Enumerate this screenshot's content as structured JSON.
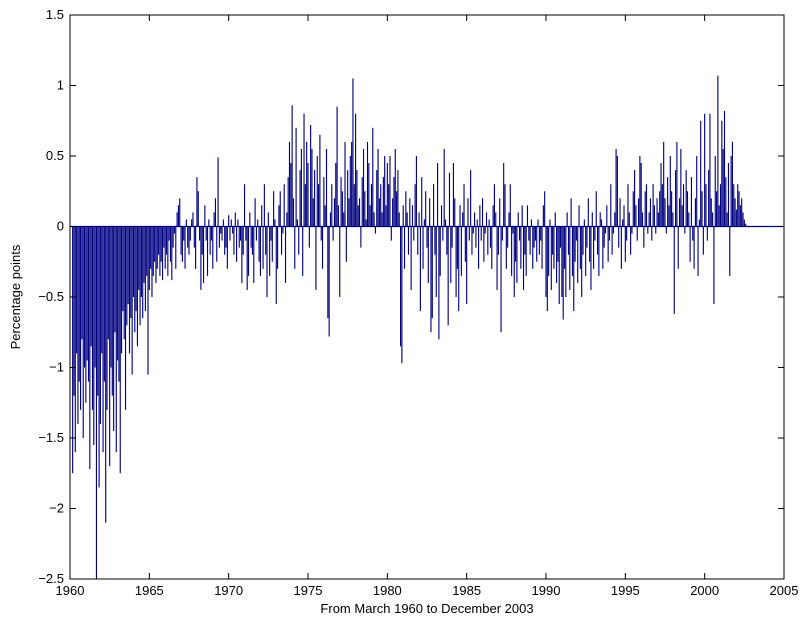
{
  "chart_data": {
    "type": "bar",
    "xlabel": "From March 1960 to December 2003",
    "ylabel": "Percentage points",
    "xlim": [
      1960,
      2005
    ],
    "ylim": [
      -2.5,
      1.5
    ],
    "grid": false,
    "bar_color": "#000080",
    "x_ticks": [
      1960,
      1965,
      1970,
      1975,
      1980,
      1985,
      1990,
      1995,
      2000,
      2005
    ],
    "y_ticks": [
      -2.5,
      -2,
      -1.5,
      -1,
      -0.5,
      0,
      0.5,
      1,
      1.5
    ],
    "x_tick_labels": [
      "1960",
      "1965",
      "1970",
      "1975",
      "1980",
      "1985",
      "1990",
      "1995",
      "2000",
      "2005"
    ],
    "y_tick_labels": [
      "−2.5",
      "−2",
      "−1.5",
      "−1",
      "−0.5",
      "0",
      "0.5",
      "1",
      "1.5"
    ],
    "x_start": "1960-03",
    "x_end": "2003-12",
    "series": [
      {
        "frequency": "monthly",
        "values": [
          -1.75,
          -1.2,
          -1.6,
          -0.9,
          -1.4,
          -1.1,
          -1.3,
          -0.8,
          -1.5,
          -1.0,
          -1.25,
          -0.95,
          -1.1,
          -1.72,
          -0.85,
          -1.3,
          -1.55,
          -1.0,
          -2.5,
          -1.2,
          -1.85,
          -1.4,
          -0.9,
          -1.6,
          -1.1,
          -2.1,
          -1.3,
          -0.8,
          -1.7,
          -1.0,
          -1.2,
          -1.45,
          -0.75,
          -1.6,
          -0.95,
          -1.1,
          -1.75,
          -0.9,
          -0.6,
          -0.8,
          -1.3,
          -0.7,
          -0.55,
          -0.9,
          -0.65,
          -1.05,
          -0.5,
          -0.75,
          -0.6,
          -0.85,
          -0.45,
          -0.7,
          -0.5,
          -0.65,
          -0.4,
          -0.6,
          -0.35,
          -1.05,
          -0.45,
          -0.3,
          -0.5,
          -0.35,
          -0.25,
          -0.4,
          -0.3,
          -0.2,
          -0.35,
          -0.25,
          -0.38,
          -0.15,
          -0.3,
          -0.2,
          -0.35,
          -0.1,
          -0.25,
          -0.38,
          -0.15,
          -0.05,
          -0.3,
          0.1,
          0.15,
          0.2,
          -0.2,
          -0.25,
          -0.1,
          -0.3,
          0.05,
          -0.15,
          -0.2,
          -0.1,
          0.05,
          0.1,
          -0.15,
          -0.3,
          0.35,
          0.25,
          -0.1,
          -0.45,
          -0.2,
          -0.4,
          0.15,
          -0.1,
          -0.35,
          0.05,
          -0.2,
          -0.1,
          -0.3,
          0.1,
          0.2,
          -0.25,
          0.49,
          -0.15,
          -0.05,
          -0.1,
          0.05,
          -0.2,
          -0.15,
          -0.3,
          0.08,
          -0.1,
          0.05,
          -0.05,
          -0.2,
          0.1,
          -0.25,
          0.05,
          -0.15,
          -0.1,
          -0.4,
          -0.2,
          0.3,
          -0.1,
          -0.45,
          -0.35,
          0.1,
          -0.15,
          -0.2,
          -0.4,
          0.2,
          -0.1,
          0.05,
          -0.25,
          -0.35,
          0.15,
          -0.3,
          0.3,
          -0.2,
          -0.5,
          0.1,
          -0.35,
          -0.1,
          -0.25,
          0.25,
          0.05,
          -0.55,
          -0.3,
          0.15,
          0.25,
          -0.2,
          -0.05,
          0.3,
          -0.4,
          0.1,
          0.35,
          0.6,
          0.45,
          0.86,
          0.2,
          -0.3,
          0.7,
          0.05,
          -0.2,
          0.4,
          0.55,
          -0.35,
          0.8,
          0.3,
          0.6,
          0.45,
          -0.15,
          0.72,
          0.55,
          0.2,
          0.4,
          -0.45,
          0.5,
          0.3,
          0.65,
          -0.1,
          -0.3,
          0.35,
          0.15,
          0.55,
          -0.65,
          -0.78,
          0.1,
          0.3,
          -0.1,
          0.2,
          0.45,
          0.85,
          0.15,
          -0.5,
          0.35,
          0.25,
          0.1,
          0.6,
          -0.25,
          0.4,
          0.2,
          0.5,
          0.6,
          1.05,
          0.3,
          0.8,
          0.4,
          0.15,
          0.2,
          -0.15,
          0.35,
          0.55,
          0.25,
          0.05,
          0.6,
          0.45,
          0.15,
          0.3,
          0.7,
          0.1,
          -0.05,
          0.4,
          0.55,
          0.2,
          0.3,
          0.1,
          0.35,
          0.5,
          0.15,
          0.45,
          0.3,
          0.5,
          -0.1,
          0.2,
          0.35,
          0.55,
          0.25,
          0.4,
          0.1,
          -0.85,
          -0.97,
          0.15,
          -0.3,
          0.25,
          0.1,
          -0.2,
          0.2,
          -0.45,
          0.15,
          -0.1,
          0.3,
          0.5,
          -0.2,
          0.1,
          -0.6,
          0.35,
          -0.3,
          0.05,
          0.25,
          -0.15,
          -0.4,
          0.2,
          -0.75,
          -0.65,
          0.3,
          -0.2,
          -0.5,
          0.45,
          -0.8,
          -0.35,
          0.15,
          -0.1,
          0.55,
          0.05,
          -0.2,
          -0.7,
          0.38,
          -0.4,
          -0.15,
          0.45,
          0.2,
          -0.5,
          -0.3,
          -0.6,
          0.15,
          -0.35,
          0.1,
          0.3,
          -0.25,
          -0.55,
          0.2,
          -0.1,
          0.4,
          -0.2,
          -0.05,
          0.1,
          -0.15,
          0.05,
          -0.3,
          0.15,
          -0.1,
          0.2,
          -0.25,
          -0.05,
          0.1,
          -0.2,
          0.05,
          -0.15,
          -0.3,
          0.15,
          0.3,
          0.1,
          -0.45,
          -0.2,
          0.2,
          -0.75,
          -0.1,
          0.45,
          0.3,
          -0.3,
          -0.15,
          0.1,
          0.3,
          -0.35,
          -0.05,
          -0.5,
          -0.25,
          -0.4,
          0.1,
          -0.1,
          -0.3,
          0.15,
          -0.45,
          -0.2,
          -0.35,
          0.15,
          -0.1,
          -0.2,
          0.05,
          -0.3,
          -0.15,
          -0.1,
          -0.25,
          0.05,
          -0.2,
          -0.1,
          -0.3,
          0.15,
          0.25,
          -0.5,
          -0.6,
          -0.35,
          0.05,
          -0.45,
          -0.2,
          -0.3,
          0.1,
          -0.4,
          -0.25,
          -0.55,
          -0.15,
          -0.5,
          -0.66,
          -0.3,
          -0.5,
          0.1,
          -0.2,
          -0.45,
          0.2,
          -0.35,
          -0.6,
          -0.25,
          -0.1,
          -0.4,
          0.15,
          -0.3,
          -0.5,
          -0.2,
          0.05,
          -0.35,
          -0.15,
          0.2,
          -0.25,
          -0.45,
          0.1,
          -0.3,
          -0.1,
          0.25,
          -0.2,
          -0.35,
          0.1,
          0.05,
          -0.3,
          -0.15,
          -0.05,
          0.15,
          -0.25,
          -0.1,
          0.3,
          -0.2,
          -0.05,
          0.1,
          0.55,
          0.5,
          -0.15,
          0.2,
          -0.3,
          0.05,
          0.15,
          -0.25,
          -0.1,
          0.3,
          0.1,
          -0.2,
          -0.05,
          0.25,
          0.4,
          0.15,
          -0.1,
          0.2,
          0.5,
          0.45,
          0.1,
          -0.15,
          0.25,
          0.3,
          -0.05,
          0.1,
          0.2,
          -0.1,
          0.3,
          0.15,
          -0.05,
          0.2,
          0.1,
          0.25,
          0.45,
          0.3,
          0.6,
          0.2,
          -0.05,
          0.35,
          0.15,
          0.5,
          0.25,
          0.1,
          -0.62,
          0.4,
          0.6,
          -0.3,
          0.2,
          0.55,
          0.15,
          0.3,
          -0.05,
          0.4,
          0.25,
          0.1,
          -0.25,
          0.35,
          -0.1,
          -0.3,
          0.2,
          0.5,
          -0.35,
          0.05,
          0.75,
          0.25,
          -0.2,
          0.8,
          0.3,
          -0.1,
          0.4,
          0.8,
          0.2,
          0.1,
          -0.55,
          0.5,
          0.25,
          1.07,
          0.15,
          0.3,
          0.75,
          0.55,
          0.82,
          0.35,
          0.1,
          0.45,
          -0.35,
          0.5,
          0.6,
          0.3,
          0.2,
          0.12,
          0.3,
          0.25,
          0.15,
          0.2,
          0.1,
          0.05,
          0.02
        ]
      }
    ]
  }
}
